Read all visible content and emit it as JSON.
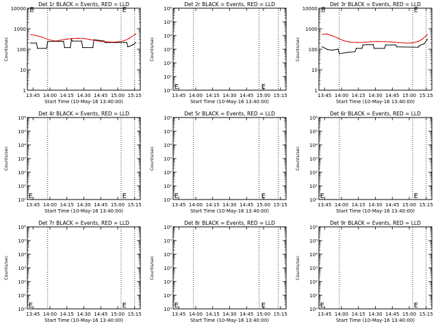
{
  "chart_data": [
    {
      "type": "line",
      "scale": "log",
      "title": "Det 1r BLACK = Events, RED = LLD",
      "xlabel": "Start Time (10-May-16 13:40:00)",
      "ylabel": "Counts/sec",
      "xlim": [
        "13:40",
        "15:20"
      ],
      "xticks": [
        "13:45",
        "14:00",
        "14:15",
        "14:30",
        "14:45",
        "15:00",
        "15:15"
      ],
      "ylim": [
        1,
        10000
      ],
      "yticks": [
        "1",
        "10",
        "100",
        "1000",
        "10000"
      ],
      "vlines": [
        "13:58",
        "15:03",
        "15:15"
      ],
      "markers": [
        {
          "label": "E",
          "x": "13:42",
          "y": 9000
        },
        {
          "label": "E",
          "x": "15:04",
          "y": 9000
        }
      ],
      "series": [
        {
          "color": "#000000",
          "x": [
            "13:43",
            "13:48",
            "13:49",
            "13:57",
            "13:58",
            "14:12",
            "14:13",
            "14:18",
            "14:19",
            "14:20",
            "14:28",
            "14:29",
            "14:38",
            "14:39",
            "14:48",
            "14:49",
            "15:08",
            "15:09",
            "15:13",
            "15:16"
          ],
          "y": [
            200,
            200,
            110,
            110,
            240,
            240,
            120,
            120,
            300,
            250,
            250,
            120,
            120,
            290,
            250,
            210,
            210,
            130,
            160,
            210
          ]
        },
        {
          "color": "#e00000",
          "x": [
            "13:43",
            "13:48",
            "13:53",
            "13:58",
            "14:05",
            "14:10",
            "14:15",
            "14:20",
            "14:25",
            "14:30",
            "14:35",
            "14:40",
            "14:45",
            "14:50",
            "14:55",
            "15:00",
            "15:05",
            "15:10",
            "15:16"
          ],
          "y": [
            520,
            460,
            390,
            300,
            250,
            280,
            310,
            330,
            340,
            330,
            300,
            270,
            240,
            230,
            220,
            230,
            250,
            330,
            560
          ]
        }
      ]
    },
    {
      "type": "line",
      "scale": "log",
      "title": "Det 2r BLACK = Events, RED = LLD",
      "xlabel": "Start Time (10-May-16 13:40:00)",
      "ylabel": "Counts/sec",
      "xlim": [
        "13:40",
        "15:20"
      ],
      "xticks": [
        "13:45",
        "14:00",
        "14:15",
        "14:30",
        "14:45",
        "15:00",
        "15:15"
      ],
      "ylim": [
        1,
        1000000
      ],
      "yticks": [
        "10⁰",
        "10¹",
        "10²",
        "10³",
        "10⁴",
        "10⁵",
        "10⁶"
      ],
      "vlines": [
        "13:58",
        "14:56",
        "15:13"
      ],
      "markers": [
        {
          "label": "E",
          "x": "13:41",
          "y": 2
        },
        {
          "label": "E",
          "x": "14:58",
          "y": 2
        }
      ],
      "series": []
    },
    {
      "type": "line",
      "scale": "log",
      "title": "Det 3r BLACK = Events, RED = LLD",
      "xlabel": "Start Time (10-May-16 13:40:00)",
      "ylabel": "Counts/sec",
      "xlim": [
        "13:40",
        "15:20"
      ],
      "xticks": [
        "13:45",
        "14:00",
        "14:15",
        "14:30",
        "14:45",
        "15:00",
        "15:15"
      ],
      "ylim": [
        1,
        10000
      ],
      "yticks": [
        "1",
        "10",
        "100",
        "1000",
        "10000"
      ],
      "vlines": [
        "13:58",
        "15:03",
        "15:15"
      ],
      "markers": [
        {
          "label": "E",
          "x": "13:42",
          "y": 9000
        },
        {
          "label": "E",
          "x": "15:04",
          "y": 9000
        }
      ],
      "series": [
        {
          "color": "#000000",
          "x": [
            "13:43",
            "13:48",
            "13:52",
            "13:57",
            "13:58",
            "14:05",
            "14:12",
            "14:13",
            "14:18",
            "14:19",
            "14:28",
            "14:29",
            "14:38",
            "14:39",
            "14:48",
            "14:49",
            "15:08",
            "15:09",
            "15:13",
            "15:16"
          ],
          "y": [
            130,
            95,
            90,
            100,
            60,
            70,
            75,
            110,
            110,
            160,
            170,
            110,
            110,
            160,
            160,
            130,
            125,
            150,
            180,
            300
          ]
        },
        {
          "color": "#e00000",
          "x": [
            "13:43",
            "13:47",
            "13:52",
            "13:57",
            "14:02",
            "14:08",
            "14:14",
            "14:20",
            "14:26",
            "14:32",
            "14:38",
            "14:44",
            "14:50",
            "14:56",
            "15:02",
            "15:08",
            "15:12",
            "15:16"
          ],
          "y": [
            520,
            560,
            450,
            340,
            260,
            220,
            210,
            215,
            230,
            240,
            235,
            225,
            210,
            200,
            200,
            240,
            320,
            520
          ]
        }
      ]
    },
    {
      "type": "line",
      "scale": "log",
      "title": "Det 4r BLACK = Events, RED = LLD",
      "xlabel": "Start Time (10-May-16 13:40:00)",
      "ylabel": "Counts/sec",
      "xlim": [
        "13:40",
        "15:20"
      ],
      "xticks": [
        "13:45",
        "14:00",
        "14:15",
        "14:30",
        "14:45",
        "15:00",
        "15:15"
      ],
      "ylim": [
        1,
        1000000
      ],
      "yticks": [
        "10⁰",
        "10¹",
        "10²",
        "10³",
        "10⁴",
        "10⁵",
        "10⁶"
      ],
      "vlines": [
        "13:58",
        "15:03",
        "15:15"
      ],
      "markers": [
        {
          "label": "E",
          "x": "13:41",
          "y": 2
        },
        {
          "label": "E",
          "x": "15:04",
          "y": 2
        }
      ],
      "series": []
    },
    {
      "type": "line",
      "scale": "log",
      "title": "Det 5r BLACK = Events, RED = LLD",
      "xlabel": "Start Time (10-May-16 13:40:00)",
      "ylabel": "Counts/sec",
      "xlim": [
        "13:40",
        "15:20"
      ],
      "xticks": [
        "13:45",
        "14:00",
        "14:15",
        "14:30",
        "14:45",
        "15:00",
        "15:15"
      ],
      "ylim": [
        1,
        1000000
      ],
      "yticks": [
        "10⁰",
        "10¹",
        "10²",
        "10³",
        "10⁴",
        "10⁵",
        "10⁶"
      ],
      "vlines": [
        "13:58",
        "14:56",
        "15:13"
      ],
      "markers": [
        {
          "label": "E",
          "x": "13:41",
          "y": 2
        },
        {
          "label": "E",
          "x": "14:58",
          "y": 2
        }
      ],
      "series": []
    },
    {
      "type": "line",
      "scale": "log",
      "title": "Det 6r BLACK = Events, RED = LLD",
      "xlabel": "Start Time (10-May-16 13:40:00)",
      "ylabel": "Counts/sec",
      "xlim": [
        "13:40",
        "15:20"
      ],
      "xticks": [
        "13:45",
        "14:00",
        "14:15",
        "14:30",
        "14:45",
        "15:00",
        "15:15"
      ],
      "ylim": [
        1,
        1000000
      ],
      "yticks": [
        "10⁰",
        "10¹",
        "10²",
        "10³",
        "10⁴",
        "10⁵",
        "10⁶"
      ],
      "vlines": [
        "13:58",
        "15:03",
        "15:15"
      ],
      "markers": [
        {
          "label": "E",
          "x": "13:41",
          "y": 2
        },
        {
          "label": "E",
          "x": "15:04",
          "y": 2
        }
      ],
      "series": []
    },
    {
      "type": "line",
      "scale": "log",
      "title": "Det 7r BLACK = Events, RED = LLD",
      "xlabel": "Start Time (10-May-16 13:40:00)",
      "ylabel": "Counts/sec",
      "xlim": [
        "13:40",
        "15:20"
      ],
      "xticks": [
        "13:45",
        "14:00",
        "14:15",
        "14:30",
        "14:45",
        "15:00",
        "15:15"
      ],
      "ylim": [
        1,
        1000000
      ],
      "yticks": [
        "10⁰",
        "10¹",
        "10²",
        "10³",
        "10⁴",
        "10⁵",
        "10⁶"
      ],
      "vlines": [
        "13:58",
        "15:03",
        "15:15"
      ],
      "markers": [
        {
          "label": "E",
          "x": "13:41",
          "y": 2
        },
        {
          "label": "E",
          "x": "15:04",
          "y": 2
        }
      ],
      "series": []
    },
    {
      "type": "line",
      "scale": "log",
      "title": "Det 8r BLACK = Events, RED = LLD",
      "xlabel": "Start Time (10-May-16 13:40:00)",
      "ylabel": "Counts/sec",
      "xlim": [
        "13:40",
        "15:20"
      ],
      "xticks": [
        "13:45",
        "14:00",
        "14:15",
        "14:30",
        "14:45",
        "15:00",
        "15:15"
      ],
      "ylim": [
        1,
        1000000
      ],
      "yticks": [
        "10⁰",
        "10¹",
        "10²",
        "10³",
        "10⁴",
        "10⁵",
        "10⁶"
      ],
      "vlines": [
        "13:58",
        "14:56",
        "15:13"
      ],
      "markers": [
        {
          "label": "E",
          "x": "13:41",
          "y": 2
        },
        {
          "label": "E",
          "x": "14:58",
          "y": 2
        }
      ],
      "series": []
    },
    {
      "type": "line",
      "scale": "log",
      "title": "Det 9r BLACK = Events, RED = LLD",
      "xlabel": "Start Time (10-May-16 13:40:00)",
      "ylabel": "Counts/sec",
      "xlim": [
        "13:40",
        "15:20"
      ],
      "xticks": [
        "13:45",
        "14:00",
        "14:15",
        "14:30",
        "14:45",
        "15:00",
        "15:15"
      ],
      "ylim": [
        1,
        1000000
      ],
      "yticks": [
        "10⁰",
        "10¹",
        "10²",
        "10³",
        "10⁴",
        "10⁵",
        "10⁶"
      ],
      "vlines": [
        "13:58",
        "15:03",
        "15:15"
      ],
      "markers": [
        {
          "label": "E",
          "x": "13:41",
          "y": 2
        },
        {
          "label": "E",
          "x": "15:04",
          "y": 2
        }
      ],
      "series": []
    }
  ]
}
